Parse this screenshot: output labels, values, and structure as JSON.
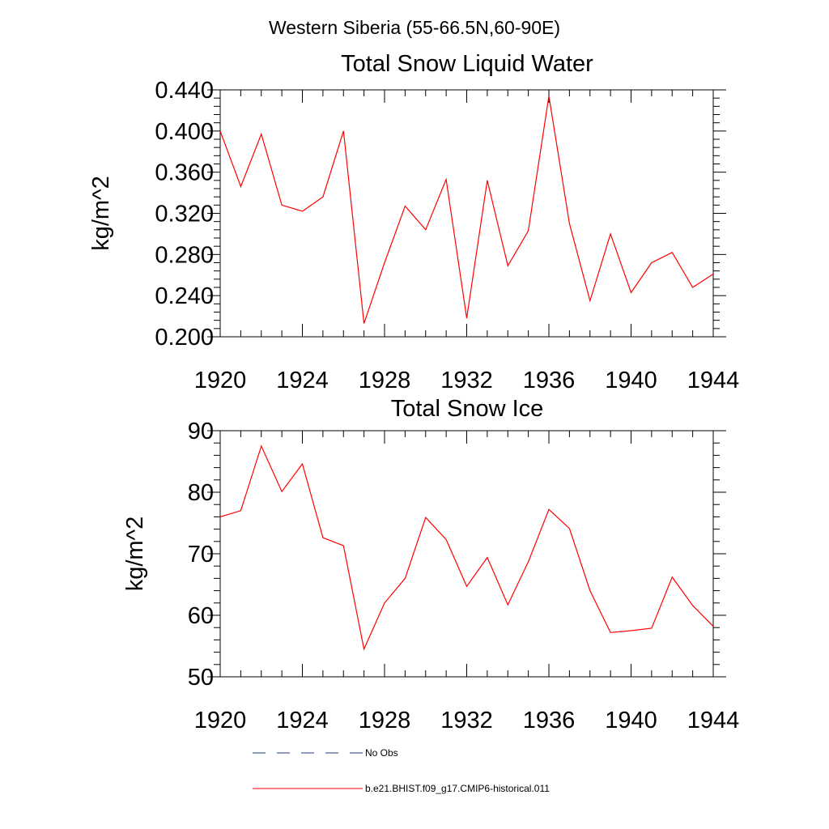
{
  "figure": {
    "title": "Western Siberia (55-66.5N,60-90E)"
  },
  "chart_data": [
    {
      "type": "line",
      "title": "Total Snow Liquid Water",
      "xlabel": "",
      "ylabel": "kg/m^2",
      "xlim": [
        1920,
        1944
      ],
      "ylim": [
        0.2,
        0.44
      ],
      "xticks": [
        1920,
        1924,
        1928,
        1932,
        1936,
        1940,
        1944
      ],
      "xtick_labels": [
        "1920",
        "1924",
        "1928",
        "1932",
        "1936",
        "1940",
        "1944"
      ],
      "yticks": [
        0.2,
        0.24,
        0.28,
        0.32,
        0.36,
        0.4,
        0.44
      ],
      "ytick_labels": [
        "0.200",
        "0.240",
        "0.280",
        "0.320",
        "0.360",
        "0.400",
        "0.440"
      ],
      "x": [
        1920,
        1921,
        1922,
        1923,
        1924,
        1925,
        1926,
        1927,
        1928,
        1929,
        1930,
        1931,
        1932,
        1933,
        1934,
        1935,
        1936,
        1937,
        1938,
        1939,
        1940,
        1941,
        1942,
        1943,
        1944
      ],
      "series": [
        {
          "name": "b.e21.BHIST.f09_g17.CMIP6-historical.011",
          "color": "#ff0000",
          "values": [
            0.4,
            0.346,
            0.397,
            0.328,
            0.322,
            0.336,
            0.4,
            0.213,
            0.272,
            0.327,
            0.304,
            0.353,
            0.218,
            0.352,
            0.269,
            0.303,
            0.434,
            0.31,
            0.235,
            0.3,
            0.243,
            0.272,
            0.282,
            0.248,
            0.261
          ]
        }
      ]
    },
    {
      "type": "line",
      "title": "Total Snow Ice",
      "xlabel": "",
      "ylabel": "kg/m^2",
      "xlim": [
        1920,
        1944
      ],
      "ylim": [
        50,
        90
      ],
      "xticks": [
        1920,
        1924,
        1928,
        1932,
        1936,
        1940,
        1944
      ],
      "xtick_labels": [
        "1920",
        "1924",
        "1928",
        "1932",
        "1936",
        "1940",
        "1944"
      ],
      "yticks": [
        50,
        60,
        70,
        80,
        90
      ],
      "ytick_labels": [
        "50",
        "60",
        "70",
        "80",
        "90"
      ],
      "x": [
        1920,
        1921,
        1922,
        1923,
        1924,
        1925,
        1926,
        1927,
        1928,
        1929,
        1930,
        1931,
        1932,
        1933,
        1934,
        1935,
        1936,
        1937,
        1938,
        1939,
        1940,
        1941,
        1942,
        1943,
        1944
      ],
      "series": [
        {
          "name": "b.e21.BHIST.f09_g17.CMIP6-historical.011",
          "color": "#ff0000",
          "values": [
            76.0,
            77.0,
            87.5,
            80.1,
            84.6,
            72.6,
            71.3,
            54.5,
            62.0,
            66.0,
            75.9,
            72.3,
            64.7,
            69.4,
            61.7,
            68.7,
            77.2,
            74.1,
            64.0,
            57.2,
            57.5,
            57.9,
            66.2,
            61.6,
            58.2
          ]
        }
      ]
    }
  ],
  "legend": {
    "entries": [
      {
        "label": "No Obs",
        "color": "#1f3a8a",
        "style": "dashed"
      },
      {
        "label": "b.e21.BHIST.f09_g17.CMIP6-historical.011",
        "color": "#ff0000",
        "style": "solid"
      }
    ]
  }
}
